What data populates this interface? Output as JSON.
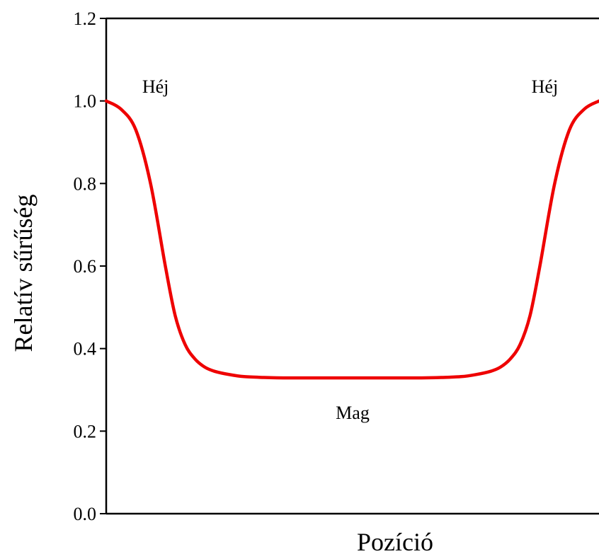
{
  "chart_data": {
    "type": "line",
    "title": "",
    "xlabel": "Pozíció",
    "ylabel": "Relatív sűrűség",
    "ylim": [
      0,
      1.2
    ],
    "xlim": [
      0,
      1
    ],
    "x_ticks_shown": false,
    "y_ticks": [
      "0.0",
      "0.2",
      "0.4",
      "0.6",
      "0.8",
      "1.0",
      "1.2"
    ],
    "grid": false,
    "legend": "none",
    "series": [
      {
        "color": "#ee0000",
        "x": [
          0,
          0.03,
          0.06,
          0.09,
          0.12,
          0.14,
          0.16,
          0.18,
          0.2,
          0.22,
          0.25,
          0.28,
          0.32,
          0.36,
          0.42,
          0.5,
          0.58,
          0.64,
          0.68,
          0.72,
          0.75,
          0.78,
          0.8,
          0.82,
          0.84,
          0.86,
          0.88,
          0.91,
          0.94,
          0.97,
          1.0
        ],
        "y": [
          1.0,
          0.98,
          0.93,
          0.8,
          0.6,
          0.48,
          0.41,
          0.375,
          0.355,
          0.345,
          0.337,
          0.332,
          0.33,
          0.329,
          0.329,
          0.329,
          0.329,
          0.329,
          0.33,
          0.332,
          0.337,
          0.345,
          0.355,
          0.375,
          0.41,
          0.48,
          0.6,
          0.8,
          0.93,
          0.98,
          1.0
        ]
      }
    ],
    "annotations": [
      {
        "text": "Héj",
        "x": 0.1,
        "y": 1.02
      },
      {
        "text": "Héj",
        "x": 0.89,
        "y": 1.02
      },
      {
        "text": "Mag",
        "x": 0.5,
        "y": 0.23
      }
    ]
  }
}
